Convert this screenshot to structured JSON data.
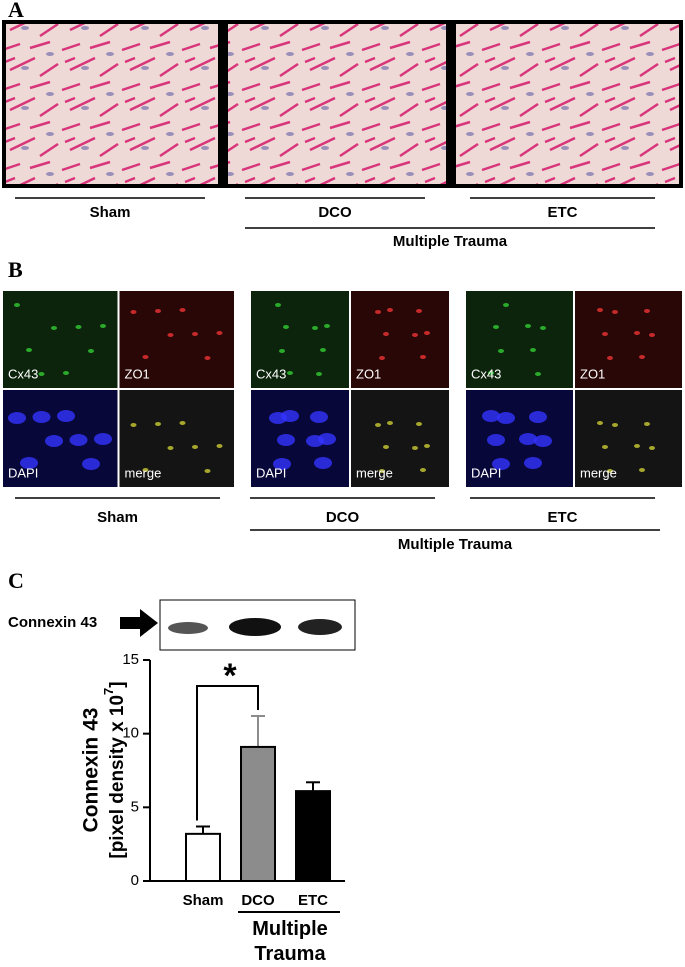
{
  "panel_a": {
    "label": "A",
    "groups": [
      "Sham",
      "DCO",
      "ETC"
    ],
    "bracket": "Multiple Trauma"
  },
  "panel_b": {
    "label": "B",
    "groups": [
      "Sham",
      "DCO",
      "ETC"
    ],
    "bracket": "Multiple Trauma",
    "channels": [
      "Cx43",
      "ZO1",
      "DAPI",
      "merge"
    ]
  },
  "panel_c": {
    "label": "C",
    "blot_label": "Connexin 43"
  },
  "chart_data": {
    "type": "bar",
    "categories": [
      "Sham",
      "DCO",
      "ETC"
    ],
    "values": [
      3.2,
      9.1,
      6.1
    ],
    "errors": [
      0.5,
      2.1,
      0.6
    ],
    "colors": [
      "#ffffff",
      "#8c8c8c",
      "#000000"
    ],
    "ylim": [
      0,
      15
    ],
    "yticks": [
      0,
      5,
      10,
      15
    ],
    "y_label": "Connexin 43",
    "y_label_unit": "[pixel density x 10",
    "y_label_exponent": "7",
    "y_label_close": "]",
    "group_label": "Multiple Trauma",
    "significance": "*"
  }
}
